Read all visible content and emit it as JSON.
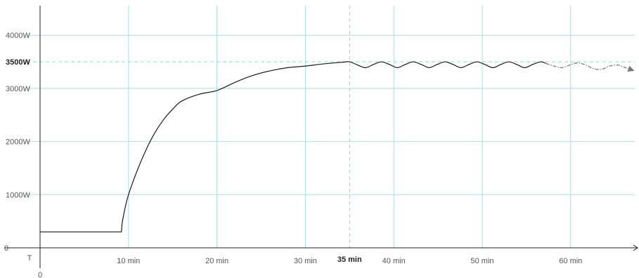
{
  "chart_data": {
    "type": "line",
    "title": "",
    "xlabel": "",
    "ylabel": "",
    "x_unit": "min",
    "y_unit": "W",
    "xlim": [
      0,
      67.5
    ],
    "ylim": [
      0,
      4600
    ],
    "grid": true,
    "legend": "none",
    "origin_labels": {
      "x": "0",
      "y": "0"
    },
    "time_axis_label": "T",
    "x_ticks": [
      {
        "value": 10,
        "label": "10 min"
      },
      {
        "value": 20,
        "label": "20 min"
      },
      {
        "value": 30,
        "label": "30 min"
      },
      {
        "value": 40,
        "label": "40 min"
      },
      {
        "value": 50,
        "label": "50 min"
      },
      {
        "value": 60,
        "label": "60 min"
      }
    ],
    "y_ticks": [
      {
        "value": 1000,
        "label": "1000W"
      },
      {
        "value": 2000,
        "label": "2000W"
      },
      {
        "value": 3000,
        "label": "3000W"
      },
      {
        "value": 4000,
        "label": "4000W"
      }
    ],
    "reference_lines": {
      "horizontal": {
        "value": 3500,
        "label": "3500W"
      },
      "vertical": {
        "value": 35,
        "label": "35 min"
      }
    },
    "series": [
      {
        "style": "solid",
        "points": [
          [
            0,
            300
          ],
          [
            9.2,
            300
          ],
          [
            9.3,
            480
          ],
          [
            9.6,
            740
          ],
          [
            10,
            1000
          ],
          [
            11,
            1460
          ],
          [
            12,
            1850
          ],
          [
            13,
            2170
          ],
          [
            14,
            2420
          ],
          [
            15,
            2610
          ],
          [
            16,
            2760
          ],
          [
            18,
            2890
          ],
          [
            20,
            2960
          ],
          [
            22,
            3110
          ],
          [
            24,
            3240
          ],
          [
            26,
            3330
          ],
          [
            28,
            3390
          ],
          [
            30,
            3420
          ],
          [
            32,
            3460
          ],
          [
            34,
            3490
          ],
          [
            35,
            3500
          ],
          [
            35.9,
            3440
          ],
          [
            36.8,
            3390
          ],
          [
            37.7,
            3450
          ],
          [
            38.6,
            3500
          ],
          [
            39.5,
            3450
          ],
          [
            40.4,
            3390
          ],
          [
            41.3,
            3450
          ],
          [
            42.2,
            3500
          ],
          [
            43.1,
            3450
          ],
          [
            44.0,
            3390
          ],
          [
            44.9,
            3450
          ],
          [
            45.8,
            3500
          ],
          [
            46.7,
            3450
          ],
          [
            47.6,
            3390
          ],
          [
            48.5,
            3450
          ],
          [
            49.4,
            3500
          ],
          [
            50.3,
            3450
          ],
          [
            51.2,
            3390
          ],
          [
            52.1,
            3450
          ],
          [
            53.0,
            3500
          ],
          [
            53.9,
            3450
          ],
          [
            54.8,
            3390
          ],
          [
            55.7,
            3450
          ],
          [
            56.6,
            3500
          ],
          [
            57.2,
            3470
          ]
        ]
      },
      {
        "style": "dash-dot",
        "arrow_end": true,
        "points": [
          [
            57.2,
            3470
          ],
          [
            58.1,
            3420
          ],
          [
            59.0,
            3390
          ],
          [
            59.9,
            3440
          ],
          [
            60.8,
            3480
          ],
          [
            61.7,
            3440
          ],
          [
            62.6,
            3370
          ],
          [
            63.5,
            3360
          ],
          [
            64.4,
            3420
          ],
          [
            65.3,
            3440
          ],
          [
            66.2,
            3390
          ],
          [
            67.2,
            3330
          ]
        ]
      }
    ]
  }
}
